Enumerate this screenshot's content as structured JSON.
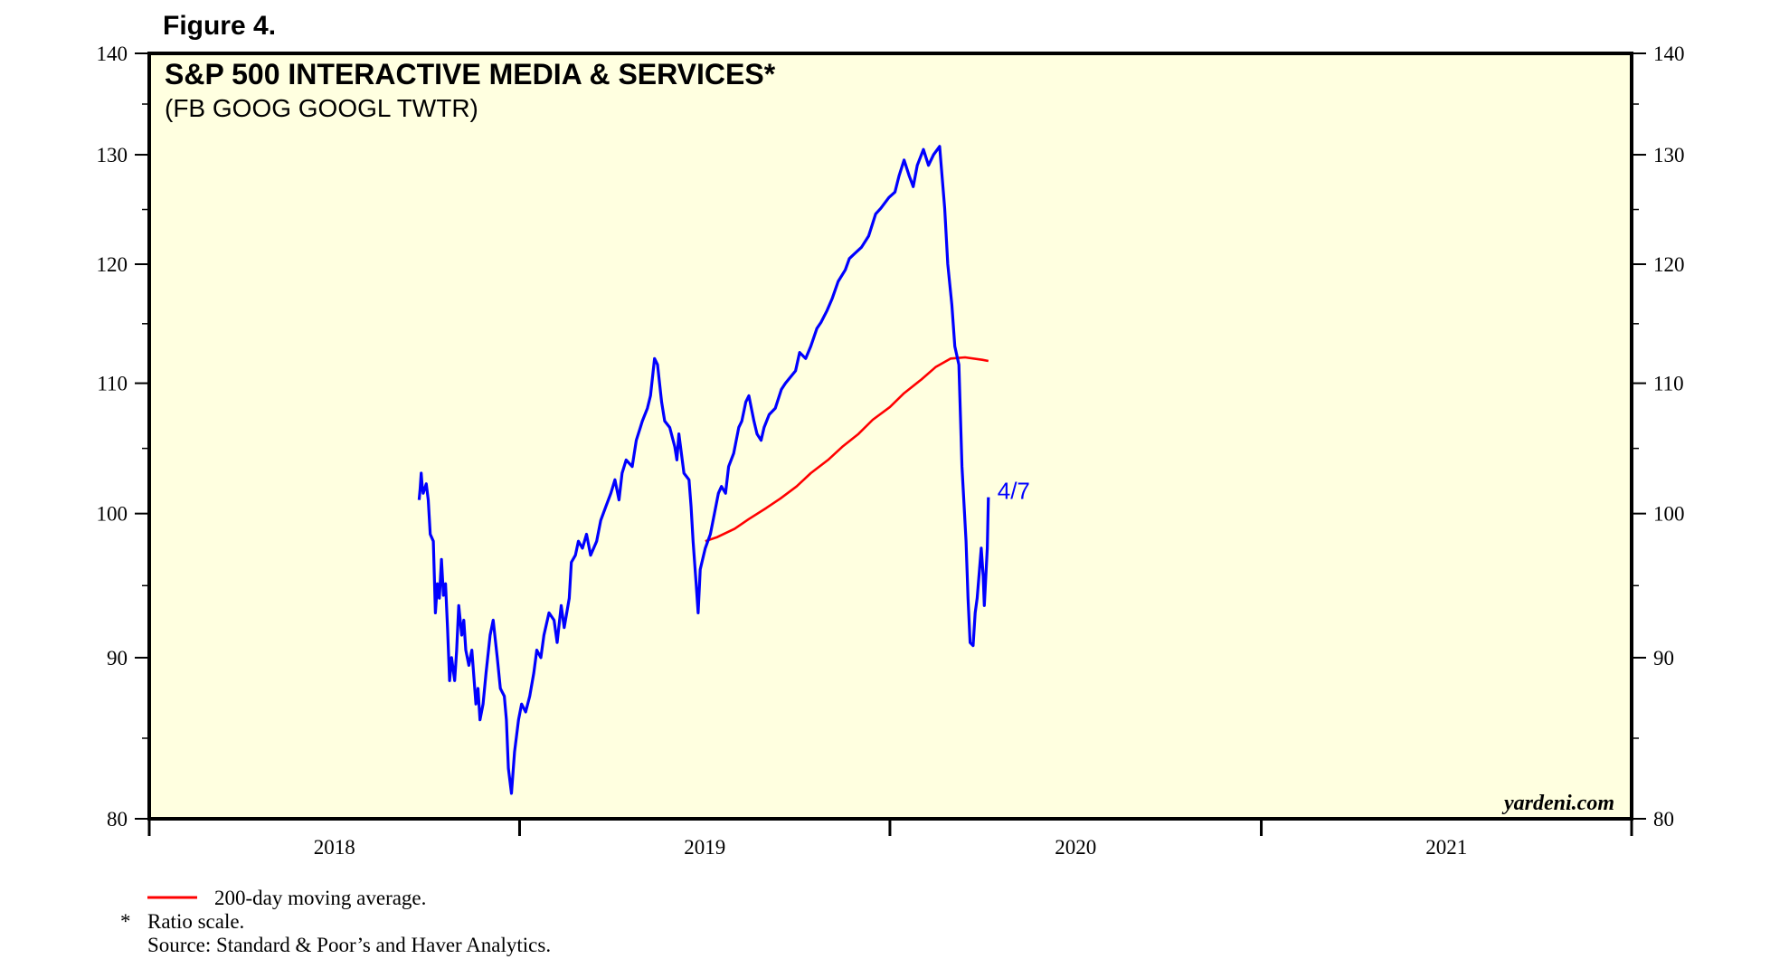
{
  "figure_label": "Figure 4.",
  "watermark": "yardeni.com",
  "footnotes": {
    "legend_ma": "200-day moving average.",
    "asterisk_mark": "*",
    "ratio_note": "Ratio scale.",
    "source": "Source: Standard & Poor’s and Haver Analytics."
  },
  "colors": {
    "background_plot": "#FFFFE0",
    "price_line": "#0000FF",
    "moving_average": "#FF0000",
    "end_label": "#0000FF"
  },
  "chart_data": {
    "type": "line",
    "title": "S&P 500 INTERACTIVE MEDIA & SERVICES*",
    "subtitle": "(FB GOOG GOOGL TWTR)",
    "scale": "log",
    "ylim": [
      80,
      140
    ],
    "y_ticks": [
      80,
      90,
      100,
      110,
      120,
      130,
      140
    ],
    "x_ticks": [
      "2018",
      "2019",
      "2020",
      "2021"
    ],
    "xlim": [
      "2018-01-01",
      "2022-01-01"
    ],
    "grid": false,
    "legend": "bottom-left, below chart",
    "end_label": "4/7",
    "series": [
      {
        "name": "S&P 500 Interactive Media & Services",
        "points": [
          [
            "2018-09-24",
            101.0
          ],
          [
            "2018-09-25",
            101.8
          ],
          [
            "2018-09-26",
            103.0
          ],
          [
            "2018-09-27",
            102.0
          ],
          [
            "2018-09-28",
            101.5
          ],
          [
            "2018-10-01",
            102.2
          ],
          [
            "2018-10-03",
            101.0
          ],
          [
            "2018-10-05",
            98.5
          ],
          [
            "2018-10-08",
            98.0
          ],
          [
            "2018-10-10",
            93.0
          ],
          [
            "2018-10-12",
            95.0
          ],
          [
            "2018-10-14",
            94.0
          ],
          [
            "2018-10-16",
            96.7
          ],
          [
            "2018-10-18",
            94.2
          ],
          [
            "2018-10-20",
            95.0
          ],
          [
            "2018-10-22",
            92.0
          ],
          [
            "2018-10-24",
            88.5
          ],
          [
            "2018-10-26",
            90.0
          ],
          [
            "2018-10-29",
            88.5
          ],
          [
            "2018-10-31",
            90.5
          ],
          [
            "2018-11-02",
            93.5
          ],
          [
            "2018-11-05",
            91.5
          ],
          [
            "2018-11-07",
            92.5
          ],
          [
            "2018-11-09",
            90.5
          ],
          [
            "2018-11-12",
            89.5
          ],
          [
            "2018-11-15",
            90.5
          ],
          [
            "2018-11-19",
            87.0
          ],
          [
            "2018-11-21",
            88.0
          ],
          [
            "2018-11-23",
            86.0
          ],
          [
            "2018-11-26",
            87.0
          ],
          [
            "2018-11-29",
            89.0
          ],
          [
            "2018-12-03",
            91.5
          ],
          [
            "2018-12-06",
            92.5
          ],
          [
            "2018-12-10",
            90.0
          ],
          [
            "2018-12-13",
            88.0
          ],
          [
            "2018-12-17",
            87.5
          ],
          [
            "2018-12-19",
            86.0
          ],
          [
            "2018-12-21",
            83.0
          ],
          [
            "2018-12-24",
            81.5
          ],
          [
            "2018-12-27",
            84.0
          ],
          [
            "2018-12-31",
            86.0
          ],
          [
            "2019-01-03",
            87.0
          ],
          [
            "2019-01-07",
            86.5
          ],
          [
            "2019-01-11",
            87.5
          ],
          [
            "2019-01-15",
            89.0
          ],
          [
            "2019-01-18",
            90.5
          ],
          [
            "2019-01-22",
            90.0
          ],
          [
            "2019-01-25",
            91.5
          ],
          [
            "2019-01-30",
            93.0
          ],
          [
            "2019-02-04",
            92.5
          ],
          [
            "2019-02-07",
            91.0
          ],
          [
            "2019-02-11",
            93.5
          ],
          [
            "2019-02-14",
            92.0
          ],
          [
            "2019-02-19",
            94.0
          ],
          [
            "2019-02-21",
            96.5
          ],
          [
            "2019-02-25",
            97.0
          ],
          [
            "2019-02-28",
            98.0
          ],
          [
            "2019-03-04",
            97.5
          ],
          [
            "2019-03-08",
            98.5
          ],
          [
            "2019-03-12",
            97.0
          ],
          [
            "2019-03-18",
            98.0
          ],
          [
            "2019-03-22",
            99.5
          ],
          [
            "2019-03-27",
            100.5
          ],
          [
            "2019-04-01",
            101.5
          ],
          [
            "2019-04-05",
            102.5
          ],
          [
            "2019-04-09",
            101.0
          ],
          [
            "2019-04-12",
            103.0
          ],
          [
            "2019-04-16",
            104.0
          ],
          [
            "2019-04-22",
            103.5
          ],
          [
            "2019-04-26",
            105.5
          ],
          [
            "2019-04-30",
            106.5
          ],
          [
            "2019-05-02",
            107.0
          ],
          [
            "2019-05-07",
            108.0
          ],
          [
            "2019-05-10",
            109.0
          ],
          [
            "2019-05-14",
            112.0
          ],
          [
            "2019-05-17",
            111.5
          ],
          [
            "2019-05-21",
            108.5
          ],
          [
            "2019-05-24",
            107.0
          ],
          [
            "2019-05-29",
            106.5
          ],
          [
            "2019-06-03",
            105.0
          ],
          [
            "2019-06-05",
            104.0
          ],
          [
            "2019-06-07",
            106.0
          ],
          [
            "2019-06-12",
            103.0
          ],
          [
            "2019-06-17",
            102.5
          ],
          [
            "2019-06-19",
            100.5
          ],
          [
            "2019-06-21",
            98.0
          ],
          [
            "2019-06-24",
            95.0
          ],
          [
            "2019-06-26",
            93.0
          ],
          [
            "2019-06-28",
            96.0
          ],
          [
            "2019-07-03",
            97.5
          ],
          [
            "2019-07-08",
            98.5
          ],
          [
            "2019-07-12",
            100.0
          ],
          [
            "2019-07-16",
            101.5
          ],
          [
            "2019-07-19",
            102.0
          ],
          [
            "2019-07-23",
            101.5
          ],
          [
            "2019-07-26",
            103.5
          ],
          [
            "2019-07-31",
            104.5
          ],
          [
            "2019-08-05",
            106.5
          ],
          [
            "2019-08-08",
            107.0
          ],
          [
            "2019-08-12",
            108.5
          ],
          [
            "2019-08-15",
            109.0
          ],
          [
            "2019-08-20",
            107.0
          ],
          [
            "2019-08-23",
            106.0
          ],
          [
            "2019-08-27",
            105.5
          ],
          [
            "2019-08-30",
            106.5
          ],
          [
            "2019-09-04",
            107.5
          ],
          [
            "2019-09-10",
            108.0
          ],
          [
            "2019-09-16",
            109.5
          ],
          [
            "2019-09-20",
            110.0
          ],
          [
            "2019-09-25",
            110.5
          ],
          [
            "2019-09-30",
            111.0
          ],
          [
            "2019-10-04",
            112.5
          ],
          [
            "2019-10-10",
            112.0
          ],
          [
            "2019-10-15",
            113.0
          ],
          [
            "2019-10-21",
            114.5
          ],
          [
            "2019-10-25",
            115.0
          ],
          [
            "2019-10-31",
            116.0
          ],
          [
            "2019-11-05",
            117.0
          ],
          [
            "2019-11-11",
            118.5
          ],
          [
            "2019-11-18",
            119.5
          ],
          [
            "2019-11-22",
            120.5
          ],
          [
            "2019-11-28",
            121.0
          ],
          [
            "2019-12-04",
            121.5
          ],
          [
            "2019-12-11",
            122.5
          ],
          [
            "2019-12-18",
            124.5
          ],
          [
            "2019-12-23",
            125.0
          ],
          [
            "2019-12-31",
            126.0
          ],
          [
            "2020-01-06",
            126.5
          ],
          [
            "2020-01-10",
            128.0
          ],
          [
            "2020-01-15",
            129.5
          ],
          [
            "2020-01-20",
            128.0
          ],
          [
            "2020-01-24",
            127.0
          ],
          [
            "2020-01-28",
            129.0
          ],
          [
            "2020-02-03",
            130.5
          ],
          [
            "2020-02-08",
            129.0
          ],
          [
            "2020-02-13",
            130.0
          ],
          [
            "2020-02-19",
            130.8
          ],
          [
            "2020-02-24",
            125.0
          ],
          [
            "2020-02-27",
            120.0
          ],
          [
            "2020-03-02",
            116.5
          ],
          [
            "2020-03-05",
            113.0
          ],
          [
            "2020-03-09",
            111.5
          ],
          [
            "2020-03-12",
            103.5
          ],
          [
            "2020-03-16",
            98.0
          ],
          [
            "2020-03-18",
            94.0
          ],
          [
            "2020-03-20",
            91.0
          ],
          [
            "2020-03-23",
            90.8
          ],
          [
            "2020-03-25",
            93.0
          ],
          [
            "2020-03-27",
            94.0
          ],
          [
            "2020-03-31",
            97.5
          ],
          [
            "2020-04-01",
            96.5
          ],
          [
            "2020-04-02",
            95.5
          ],
          [
            "2020-04-03",
            93.5
          ],
          [
            "2020-04-06",
            97.5
          ],
          [
            "2020-04-07",
            101.2
          ]
        ]
      },
      {
        "name": "200-day moving average",
        "points": [
          [
            "2019-07-03",
            98.0
          ],
          [
            "2019-07-15",
            98.3
          ],
          [
            "2019-08-01",
            98.9
          ],
          [
            "2019-08-15",
            99.6
          ],
          [
            "2019-09-01",
            100.4
          ],
          [
            "2019-09-15",
            101.1
          ],
          [
            "2019-10-01",
            102.0
          ],
          [
            "2019-10-15",
            103.0
          ],
          [
            "2019-11-01",
            104.0
          ],
          [
            "2019-11-15",
            105.0
          ],
          [
            "2019-12-01",
            106.0
          ],
          [
            "2019-12-15",
            107.1
          ],
          [
            "2020-01-01",
            108.1
          ],
          [
            "2020-01-15",
            109.2
          ],
          [
            "2020-02-01",
            110.3
          ],
          [
            "2020-02-15",
            111.3
          ],
          [
            "2020-03-01",
            112.0
          ],
          [
            "2020-03-15",
            112.1
          ],
          [
            "2020-04-01",
            111.9
          ],
          [
            "2020-04-07",
            111.8
          ]
        ]
      }
    ]
  }
}
